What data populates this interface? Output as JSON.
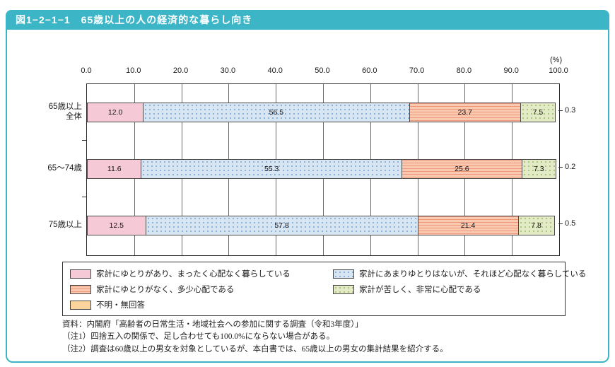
{
  "header": {
    "title": "図1−2−1−1　65歳以上の人の経済的な暮らし向き"
  },
  "chart_data": {
    "type": "bar",
    "orientation": "horizontal",
    "stacked": true,
    "percent_label": "(%)",
    "xlim": [
      0,
      100
    ],
    "x_ticks": [
      "0.0",
      "10.0",
      "20.0",
      "30.0",
      "40.0",
      "50.0",
      "60.0",
      "70.0",
      "80.0",
      "90.0",
      "100.0"
    ],
    "categories": [
      "65歳以上\n全体",
      "65〜74歳",
      "75歳以上"
    ],
    "series": [
      {
        "name": "家計にゆとりがあり、まったく心配なく暮らしている",
        "color": "#f6c9d6",
        "pattern": "solid",
        "pattern_color": "#f6c9d6",
        "values": [
          12.0,
          11.6,
          12.5
        ]
      },
      {
        "name": "家計にあまりゆとりはないが、それほど心配なく暮らしている",
        "color": "#d8e6f4",
        "pattern": "dots",
        "pattern_color": "#8fb2d8",
        "values": [
          56.5,
          55.3,
          57.8
        ]
      },
      {
        "name": "家計にゆとりがなく、多少心配である",
        "color": "#fac9b2",
        "pattern": "hstripes",
        "pattern_color": "#ee9678",
        "values": [
          23.7,
          25.6,
          21.4
        ]
      },
      {
        "name": "家計が苦しく、非常に心配である",
        "color": "#e3ebc6",
        "pattern": "dots",
        "pattern_color": "#aec282",
        "values": [
          7.5,
          7.3,
          7.8
        ]
      },
      {
        "name": "不明・無回答",
        "color": "#fbd49c",
        "pattern": "solid",
        "pattern_color": "#fbd49c",
        "values": [
          0.3,
          0.2,
          0.5
        ],
        "outside": true
      }
    ]
  },
  "notes": {
    "source": "資料：内閣府「高齢者の日常生活・地域社会への参加に関する調査（令和3年度）」",
    "note1": "（注1）四捨五入の関係で、足し合わせても100.0%にならない場合がある。",
    "note2": "（注2）調査は60歳以上の男女を対象としているが、本白書では、65歳以上の男女の集計結果を紹介する。"
  },
  "colors": {
    "accent": "#3cb5c7"
  }
}
